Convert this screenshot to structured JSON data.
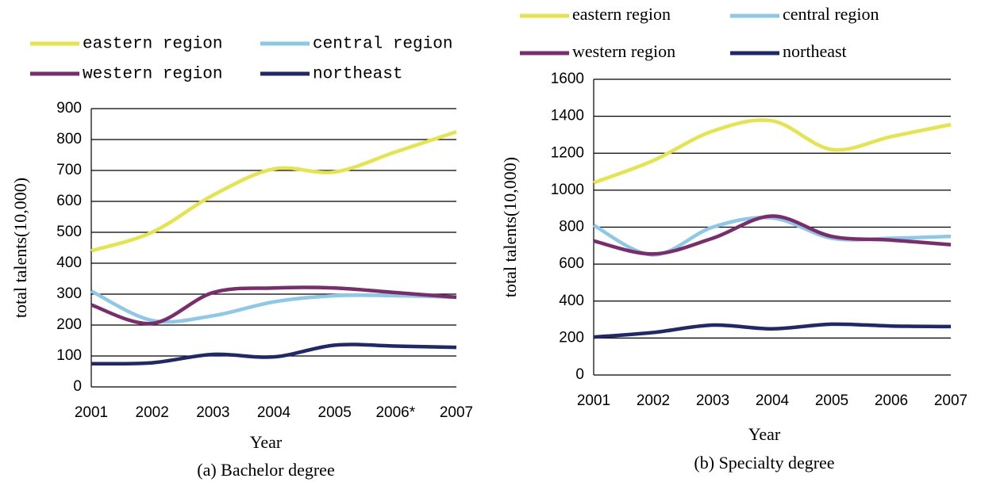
{
  "chart_data": [
    {
      "type": "line",
      "title": "(a) Bachelor degree",
      "x_label": "Year",
      "y_label": "total talents(10,000)",
      "categories": [
        "2001",
        "2002",
        "2003",
        "2004",
        "2005",
        "2006*",
        "2007"
      ],
      "ylim": [
        0,
        900
      ],
      "yticks": [
        0,
        100,
        200,
        300,
        400,
        500,
        600,
        700,
        800,
        900
      ],
      "grid": true,
      "legend_position": "top",
      "series": [
        {
          "name": "eastern region",
          "color": "#e4e44c",
          "values": [
            440,
            500,
            620,
            705,
            695,
            760,
            825
          ]
        },
        {
          "name": "central region",
          "color": "#8ec8e8",
          "values": [
            310,
            215,
            230,
            275,
            295,
            295,
            290
          ]
        },
        {
          "name": "western region",
          "color": "#7a2c6c",
          "values": [
            265,
            205,
            305,
            320,
            320,
            305,
            290
          ]
        },
        {
          "name": "northeast",
          "color": "#1f2868",
          "values": [
            75,
            78,
            105,
            97,
            135,
            132,
            128
          ]
        }
      ]
    },
    {
      "type": "line",
      "title": "(b) Specialty degree",
      "x_label": "Year",
      "y_label": "total talents(10,000)",
      "categories": [
        "2001",
        "2002",
        "2003",
        "2004",
        "2005",
        "2006",
        "2007"
      ],
      "ylim": [
        0,
        1600
      ],
      "yticks": [
        0,
        200,
        400,
        600,
        800,
        1000,
        1200,
        1400,
        1600
      ],
      "grid": true,
      "legend_position": "top",
      "series": [
        {
          "name": "eastern region",
          "color": "#e4e44c",
          "values": [
            1040,
            1160,
            1320,
            1375,
            1220,
            1290,
            1355
          ]
        },
        {
          "name": "central region",
          "color": "#8ec8e8",
          "values": [
            810,
            650,
            800,
            850,
            740,
            740,
            750
          ]
        },
        {
          "name": "western region",
          "color": "#7a2c6c",
          "values": [
            725,
            655,
            740,
            860,
            750,
            730,
            705
          ]
        },
        {
          "name": "northeast",
          "color": "#1f2868",
          "values": [
            205,
            230,
            270,
            250,
            275,
            265,
            262
          ]
        }
      ]
    }
  ]
}
